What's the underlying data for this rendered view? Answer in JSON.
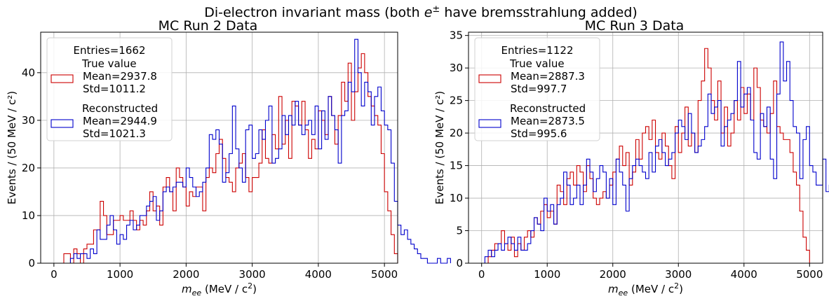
{
  "figure": {
    "suptitle_pre": "Di-electron invariant mass (both ",
    "suptitle_sym": "e",
    "suptitle_sup": "±",
    "suptitle_post": " have bremsstrahlung added)"
  },
  "colors": {
    "true": "#cc0000",
    "reco": "#0000cc",
    "grid": "#b0b0b0",
    "axis": "#000000"
  },
  "chart_data": [
    {
      "type": "histogram",
      "title": "MC Run 2 Data",
      "xlabel_pre": "m",
      "xlabel_sub": "ee",
      "xlabel_post": " (MeV / c",
      "xlabel_sup": "2",
      "xlabel_end": ")",
      "ylabel": "Events / (50 MeV / c²)",
      "xlim": [
        -200,
        5200
      ],
      "ylim": [
        0,
        48.5
      ],
      "xticks": [
        0,
        1000,
        2000,
        3000,
        4000,
        5000
      ],
      "yticks": [
        0,
        10,
        20,
        30,
        40
      ],
      "bin_width": 50,
      "grid": true,
      "legend": {
        "placement": "top-left",
        "entries_label": "Entries=1662",
        "items": [
          {
            "series": "true",
            "lines": [
              "True value",
              "Mean=2937.8",
              "Std=1011.2"
            ]
          },
          {
            "series": "reco",
            "lines": [
              "Reconstructed",
              "Mean=2944.9",
              "Std=1021.3"
            ]
          }
        ]
      },
      "series": [
        {
          "name": "True value",
          "key": "true",
          "x_start": 150,
          "values": [
            2,
            2,
            0,
            3,
            2,
            0,
            3,
            4,
            4,
            7,
            7,
            13,
            10,
            6,
            6,
            9,
            9,
            10,
            9,
            9,
            11,
            9,
            7,
            9,
            8,
            11,
            15,
            11,
            12,
            8,
            16,
            18,
            15,
            11,
            20,
            18,
            16,
            12,
            15,
            14,
            16,
            16,
            11,
            18,
            20,
            19,
            23,
            26,
            22,
            18,
            17,
            15,
            20,
            21,
            23,
            18,
            15,
            18,
            18,
            21,
            28,
            22,
            21,
            27,
            24,
            35,
            25,
            30,
            22,
            34,
            33,
            29,
            34,
            28,
            22,
            26,
            24,
            32,
            30,
            27,
            35,
            31,
            25,
            31,
            38,
            34,
            42,
            30,
            36,
            41,
            44,
            40,
            35,
            33,
            31,
            29,
            23,
            15,
            11,
            6,
            2
          ]
        },
        {
          "name": "Reconstructed",
          "key": "reco",
          "x_start": 250,
          "values": [
            1,
            2,
            1,
            2,
            2,
            1,
            3,
            2,
            7,
            5,
            5,
            8,
            10,
            7,
            4,
            6,
            5,
            8,
            9,
            7,
            8,
            10,
            10,
            12,
            13,
            14,
            9,
            11,
            15,
            16,
            15,
            16,
            17,
            17,
            16,
            20,
            18,
            16,
            14,
            15,
            17,
            20,
            27,
            26,
            28,
            25,
            17,
            19,
            23,
            33,
            24,
            20,
            17,
            28,
            29,
            22,
            23,
            28,
            26,
            30,
            33,
            21,
            22,
            24,
            31,
            27,
            31,
            29,
            34,
            29,
            27,
            29,
            30,
            27,
            33,
            24,
            32,
            26,
            35,
            31,
            28,
            21,
            31,
            32,
            38,
            36,
            47,
            40,
            33,
            38,
            36,
            29,
            35,
            37,
            32,
            29,
            28,
            21,
            13,
            8,
            6,
            7,
            5,
            4,
            3,
            2,
            1,
            1,
            0,
            0,
            0,
            1,
            0,
            0,
            1
          ]
        }
      ]
    },
    {
      "type": "histogram",
      "title": "MC Run 3 Data",
      "xlabel_pre": "m",
      "xlabel_sub": "ee",
      "xlabel_post": " (MeV / c",
      "xlabel_sup": "2",
      "xlabel_end": ")",
      "ylabel": "Events / (50 MeV / c²)",
      "xlim": [
        -200,
        5200
      ],
      "ylim": [
        0,
        35.5
      ],
      "xticks": [
        0,
        1000,
        2000,
        3000,
        4000,
        5000
      ],
      "yticks": [
        0,
        5,
        10,
        15,
        20,
        25,
        30,
        35
      ],
      "bin_width": 50,
      "grid": true,
      "legend": {
        "placement": "top-left",
        "entries_label": "Entries=1122",
        "items": [
          {
            "series": "true",
            "lines": [
              "True value",
              "Mean=2887.3",
              "Std=997.7"
            ]
          },
          {
            "series": "reco",
            "lines": [
              "Reconstructed",
              "Mean=2873.5",
              "Std=995.6"
            ]
          }
        ]
      },
      "series": [
        {
          "name": "True value",
          "key": "true",
          "x_start": 100,
          "values": [
            1,
            2,
            3,
            3,
            5,
            3,
            2,
            4,
            1,
            3,
            2,
            4,
            5,
            4,
            7,
            6,
            8,
            9,
            7,
            8,
            6,
            12,
            11,
            9,
            13,
            14,
            12,
            15,
            14,
            11,
            15,
            13,
            10,
            9,
            10,
            11,
            10,
            12,
            14,
            16,
            18,
            15,
            17,
            12,
            14,
            19,
            16,
            20,
            21,
            19,
            22,
            17,
            16,
            20,
            18,
            15,
            13,
            21,
            17,
            20,
            24,
            18,
            20,
            17,
            25,
            28,
            33,
            30,
            25,
            22,
            28,
            20,
            24,
            18,
            20,
            25,
            22,
            27,
            23,
            26,
            22,
            30,
            27,
            22,
            21,
            20,
            23,
            28,
            21,
            20,
            19,
            19,
            17,
            14,
            12,
            8,
            4,
            2
          ]
        },
        {
          "name": "Reconstructed",
          "key": "reco",
          "x_start": 50,
          "values": [
            1,
            2,
            1,
            2,
            3,
            2,
            3,
            4,
            3,
            2,
            4,
            2,
            2,
            3,
            5,
            7,
            6,
            5,
            10,
            8,
            9,
            6,
            9,
            10,
            14,
            12,
            9,
            10,
            12,
            9,
            12,
            16,
            14,
            11,
            13,
            15,
            14,
            10,
            13,
            9,
            16,
            14,
            12,
            8,
            13,
            15,
            16,
            15,
            14,
            13,
            17,
            14,
            18,
            19,
            17,
            15,
            16,
            17,
            20,
            22,
            21,
            19,
            23,
            20,
            17,
            18,
            19,
            21,
            26,
            23,
            24,
            25,
            18,
            21,
            22,
            23,
            25,
            31,
            24,
            26,
            27,
            22,
            17,
            16,
            23,
            21,
            24,
            16,
            13,
            26,
            34,
            28,
            31,
            25,
            21,
            20,
            13,
            19,
            21,
            15,
            14,
            12,
            12,
            16,
            11,
            12,
            10,
            9,
            6,
            4,
            1,
            0,
            0,
            0,
            1,
            2,
            0,
            0,
            0,
            0,
            1
          ]
        }
      ]
    }
  ]
}
